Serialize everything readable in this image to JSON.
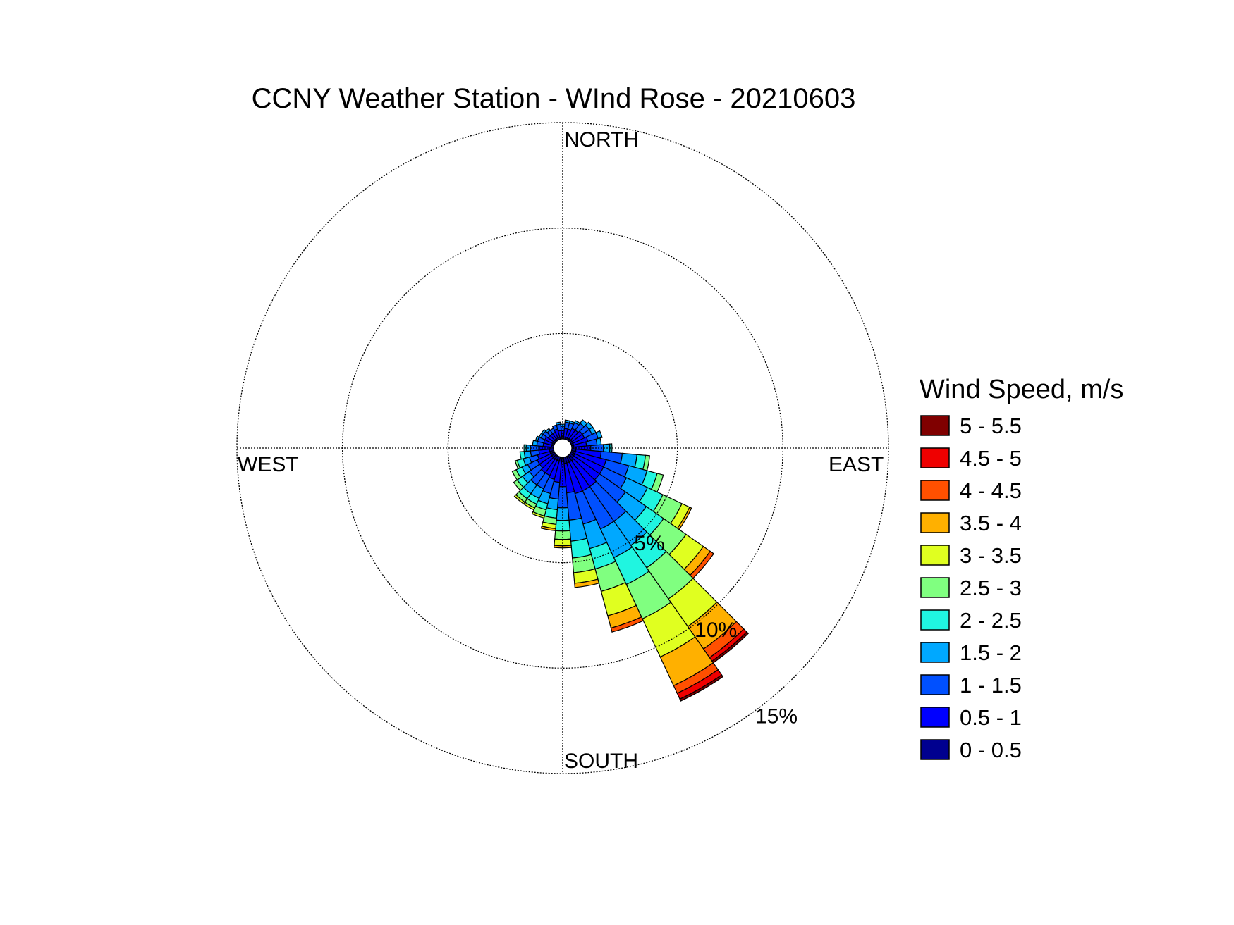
{
  "chart_data": {
    "type": "windrose",
    "title": "CCNY Weather Station - WInd Rose - 20210603",
    "directions": {
      "north": "NORTH",
      "south": "SOUTH",
      "east": "EAST",
      "west": "WEST"
    },
    "radial_unit": "%",
    "rings": [
      {
        "value": 5,
        "label": "5%"
      },
      {
        "value": 10,
        "label": "10%"
      },
      {
        "value": 15,
        "label": "15%"
      }
    ],
    "rmax": 15,
    "sector_width_deg": 10,
    "legend": {
      "title": "Wind Speed, m/s",
      "bins": [
        {
          "label": "0 - 0.5",
          "color": "#00008f"
        },
        {
          "label": "0.5 - 1",
          "color": "#0000ff"
        },
        {
          "label": "1 - 1.5",
          "color": "#0050ff"
        },
        {
          "label": "1.5 - 2",
          "color": "#00a8ff"
        },
        {
          "label": "2 - 2.5",
          "color": "#20f5e0"
        },
        {
          "label": "2.5 - 3",
          "color": "#80ff80"
        },
        {
          "label": "3 - 3.5",
          "color": "#e0ff20"
        },
        {
          "label": "3.5 - 4",
          "color": "#ffb000"
        },
        {
          "label": "4 - 4.5",
          "color": "#ff5000"
        },
        {
          "label": "4.5 - 5",
          "color": "#ef0000"
        },
        {
          "label": "5 - 5.5",
          "color": "#800000"
        }
      ]
    },
    "sectors": [
      {
        "dir": 0,
        "freq": [
          0.1,
          0.3,
          0.2,
          0.1
        ]
      },
      {
        "dir": 10,
        "freq": [
          0.1,
          0.4,
          0.3,
          0.1
        ]
      },
      {
        "dir": 20,
        "freq": [
          0.1,
          0.4,
          0.3,
          0.1
        ]
      },
      {
        "dir": 30,
        "freq": [
          0.1,
          0.5,
          0.3,
          0.1
        ]
      },
      {
        "dir": 40,
        "freq": [
          0.1,
          0.5,
          0.4,
          0.2
        ]
      },
      {
        "dir": 50,
        "freq": [
          0.1,
          0.6,
          0.4,
          0.2
        ]
      },
      {
        "dir": 60,
        "freq": [
          0.1,
          0.6,
          0.4,
          0.2
        ]
      },
      {
        "dir": 70,
        "freq": [
          0.1,
          0.7,
          0.5,
          0.2
        ]
      },
      {
        "dir": 80,
        "freq": [
          0.1,
          0.6,
          0.5,
          0.2
        ]
      },
      {
        "dir": 90,
        "freq": [
          0.2,
          0.7,
          0.6,
          0.3,
          0.1
        ]
      },
      {
        "dir": 100,
        "freq": [
          0.2,
          1.2,
          1.0,
          0.7,
          0.4,
          0.2
        ]
      },
      {
        "dir": 110,
        "freq": [
          0.2,
          1.5,
          1.1,
          0.9,
          0.5,
          0.3
        ]
      },
      {
        "dir": 120,
        "freq": [
          0.2,
          1.5,
          1.2,
          1.1,
          0.8,
          1.0,
          0.4,
          0.1
        ]
      },
      {
        "dir": 130,
        "freq": [
          0.2,
          1.5,
          1.5,
          1.2,
          1.0,
          1.3,
          1.0,
          0.4,
          0.2
        ]
      },
      {
        "dir": 140,
        "freq": [
          0.3,
          1.5,
          2.0,
          1.4,
          1.3,
          1.8,
          1.6,
          1.3,
          0.5,
          0.2,
          0.1
        ]
      },
      {
        "dir": 150,
        "freq": [
          0.3,
          1.5,
          2.0,
          1.5,
          1.4,
          1.8,
          2.0,
          1.5,
          0.4,
          0.3,
          0.1
        ]
      },
      {
        "dir": 160,
        "freq": [
          0.3,
          1.5,
          1.5,
          1.2,
          1.0,
          1.1,
          1.2,
          0.6,
          0.2
        ]
      },
      {
        "dir": 170,
        "freq": [
          0.3,
          1.4,
          1.3,
          1.0,
          0.8,
          0.7,
          0.5,
          0.2
        ]
      },
      {
        "dir": 180,
        "freq": [
          0.2,
          1.2,
          1.0,
          0.6,
          0.5,
          0.4,
          0.3,
          0.1
        ]
      },
      {
        "dir": 190,
        "freq": [
          0.2,
          1.0,
          0.8,
          0.5,
          0.4,
          0.3,
          0.2,
          0.1
        ]
      },
      {
        "dir": 200,
        "freq": [
          0.2,
          0.9,
          0.7,
          0.5,
          0.3,
          0.3,
          0.1
        ]
      },
      {
        "dir": 210,
        "freq": [
          0.2,
          0.8,
          0.7,
          0.5,
          0.3,
          0.2,
          0.1
        ]
      },
      {
        "dir": 220,
        "freq": [
          0.2,
          0.8,
          0.7,
          0.5,
          0.3,
          0.2,
          0.1
        ]
      },
      {
        "dir": 230,
        "freq": [
          0.2,
          0.7,
          0.6,
          0.4,
          0.3,
          0.2
        ]
      },
      {
        "dir": 240,
        "freq": [
          0.2,
          0.7,
          0.5,
          0.3,
          0.3,
          0.2
        ]
      },
      {
        "dir": 250,
        "freq": [
          0.2,
          0.6,
          0.4,
          0.3,
          0.3,
          0.1
        ]
      },
      {
        "dir": 260,
        "freq": [
          0.2,
          0.5,
          0.4,
          0.3,
          0.2
        ]
      },
      {
        "dir": 270,
        "freq": [
          0.2,
          0.5,
          0.4,
          0.2,
          0.1
        ]
      },
      {
        "dir": 280,
        "freq": [
          0.1,
          0.4,
          0.3,
          0.2
        ]
      },
      {
        "dir": 290,
        "freq": [
          0.1,
          0.4,
          0.3,
          0.1
        ]
      },
      {
        "dir": 300,
        "freq": [
          0.1,
          0.4,
          0.2,
          0.1
        ]
      },
      {
        "dir": 310,
        "freq": [
          0.1,
          0.3,
          0.3,
          0.1
        ]
      },
      {
        "dir": 320,
        "freq": [
          0.1,
          0.3,
          0.2,
          0.1
        ]
      },
      {
        "dir": 330,
        "freq": [
          0.1,
          0.3,
          0.2
        ]
      },
      {
        "dir": 340,
        "freq": [
          0.1,
          0.4,
          0.2
        ]
      },
      {
        "dir": 350,
        "freq": [
          0.1,
          0.3,
          0.3,
          0.1
        ]
      }
    ]
  }
}
